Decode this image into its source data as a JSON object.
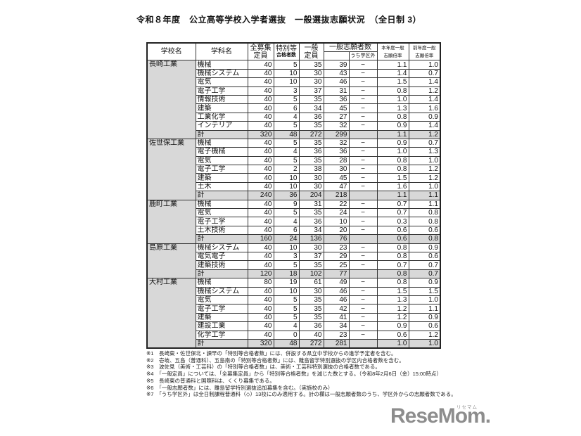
{
  "title": "令和８年度　公立高等学校入学者選抜　一般選抜志願状況　（全日制 3）",
  "table": {
    "header": {
      "school": "学校名",
      "department": "学科名",
      "total_capacity_line1": "全募集",
      "total_capacity_line2": "定員",
      "special_pass_line1": "特別等",
      "special_pass_line2": "合格者数",
      "general_quota_line1": "一般",
      "general_quota_line2": "定員",
      "applicants": "一般志願者数",
      "out_of_district": "うち学区外",
      "ratio_this_line1": "本年度一般",
      "ratio_this_line2": "志願倍率",
      "ratio_prev_line1": "前年度一般",
      "ratio_prev_line2": "志願倍率"
    },
    "schools": [
      {
        "name": "長崎工業",
        "rows": [
          [
            "機械",
            "40",
            "5",
            "35",
            "39",
            "−",
            "1.1",
            "1.0"
          ],
          [
            "機械システム",
            "40",
            "10",
            "30",
            "43",
            "−",
            "1.4",
            "0.7"
          ],
          [
            "電気",
            "40",
            "10",
            "30",
            "46",
            "−",
            "1.5",
            "1.4"
          ],
          [
            "電子工学",
            "40",
            "3",
            "37",
            "31",
            "−",
            "0.8",
            "1.2"
          ],
          [
            "情報技術",
            "40",
            "5",
            "35",
            "36",
            "−",
            "1.0",
            "1.4"
          ],
          [
            "建築",
            "40",
            "6",
            "34",
            "45",
            "−",
            "1.3",
            "1.6"
          ],
          [
            "工業化学",
            "40",
            "4",
            "36",
            "27",
            "−",
            "0.8",
            "0.9"
          ],
          [
            "インテリア",
            "40",
            "5",
            "35",
            "32",
            "−",
            "0.9",
            "1.4"
          ]
        ],
        "total": [
          "計",
          "320",
          "48",
          "272",
          "299",
          "",
          "1.1",
          "1.2"
        ]
      },
      {
        "name": "佐世保工業",
        "rows": [
          [
            "機械",
            "40",
            "5",
            "35",
            "32",
            "−",
            "0.9",
            "0.7"
          ],
          [
            "電子機械",
            "40",
            "4",
            "36",
            "36",
            "−",
            "1.0",
            "1.3"
          ],
          [
            "電気",
            "40",
            "5",
            "35",
            "28",
            "−",
            "0.8",
            "1.0"
          ],
          [
            "電子工学",
            "40",
            "2",
            "38",
            "30",
            "−",
            "0.8",
            "1.2"
          ],
          [
            "建築",
            "40",
            "10",
            "30",
            "45",
            "−",
            "1.5",
            "1.2"
          ],
          [
            "土木",
            "40",
            "10",
            "30",
            "47",
            "−",
            "1.6",
            "1.0"
          ]
        ],
        "total": [
          "計",
          "240",
          "36",
          "204",
          "218",
          "",
          "1.1",
          "1.1"
        ]
      },
      {
        "name": "鹿町工業",
        "rows": [
          [
            "機械",
            "40",
            "9",
            "31",
            "22",
            "−",
            "0.7",
            "1.1"
          ],
          [
            "電気",
            "40",
            "5",
            "35",
            "24",
            "−",
            "0.7",
            "0.8"
          ],
          [
            "電子工学",
            "40",
            "4",
            "36",
            "10",
            "−",
            "0.3",
            "0.8"
          ],
          [
            "土木技術",
            "40",
            "6",
            "34",
            "20",
            "−",
            "0.6",
            "0.6"
          ]
        ],
        "total": [
          "計",
          "160",
          "24",
          "136",
          "76",
          "",
          "0.6",
          "0.8"
        ]
      },
      {
        "name": "島原工業",
        "rows": [
          [
            "機械システム",
            "40",
            "10",
            "30",
            "23",
            "−",
            "0.8",
            "0.9"
          ],
          [
            "電気電子",
            "40",
            "3",
            "37",
            "29",
            "−",
            "0.8",
            "0.6"
          ],
          [
            "建築技術",
            "40",
            "5",
            "35",
            "25",
            "−",
            "0.7",
            "0.7"
          ]
        ],
        "total": [
          "計",
          "120",
          "18",
          "102",
          "77",
          "",
          "0.8",
          "0.7"
        ]
      },
      {
        "name": "大村工業",
        "rows": [
          [
            "機械",
            "80",
            "19",
            "61",
            "49",
            "−",
            "0.8",
            "0.9"
          ],
          [
            "機械システム",
            "40",
            "10",
            "30",
            "46",
            "−",
            "1.5",
            "1.5"
          ],
          [
            "電気",
            "40",
            "5",
            "35",
            "46",
            "−",
            "1.3",
            "1.0"
          ],
          [
            "電子工学",
            "40",
            "5",
            "35",
            "42",
            "−",
            "1.2",
            "1.1"
          ],
          [
            "建築",
            "40",
            "5",
            "35",
            "41",
            "−",
            "1.2",
            "0.9"
          ],
          [
            "建設工業",
            "40",
            "4",
            "36",
            "34",
            "−",
            "0.9",
            "0.6"
          ],
          [
            "化学工学",
            "40",
            "0",
            "40",
            "23",
            "−",
            "0.6",
            "1.2"
          ]
        ],
        "total": [
          "計",
          "320",
          "48",
          "272",
          "281",
          "",
          "1.0",
          "1.0"
        ]
      }
    ]
  },
  "footnotes": [
    "※1　長崎東・佐世保北・諫早の「特別等合格者数」には、併設する県立中学校からの進学予定者を含む。",
    "※2　壱岐、五島（普通科）、五島南の「特別等合格者数」には、離島留学特別選抜の学区内合格者数を含む。",
    "※3　波佐見（美術・工芸科）の「特別等合格者数」は、美術・工芸科特別選抜の合格者数である。",
    "※4　「一般定員」については、「全募集定員」から「特別等合格者数」を減じた数とする。（令和8年2月6日（金）15:00時点）",
    "※5　長崎東の普通科と国際科は、くくり募集である。",
    "※6　「一般志願者数」には、離島留学特別選抜追加募集を含む。（実施校のみ）",
    "※7　「うち学区外」は全日制課程普通科（◇）13校にのみ適用する。計の欄は一般志願者数のうち、学区外からの志願者数である。"
  ],
  "logo": {
    "text": "ReseMom.",
    "ruby": "リセマム"
  }
}
